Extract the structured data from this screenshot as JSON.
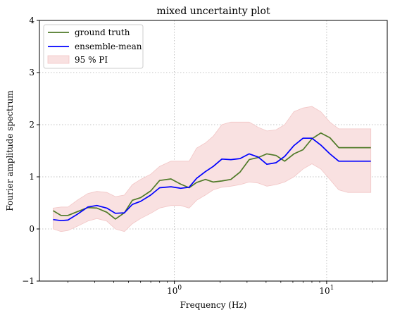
{
  "chart_data": {
    "type": "line",
    "title": "mixed uncertainty plot",
    "xlabel": "Frequency (Hz)",
    "ylabel": "Fourier amplitude spectrum",
    "xscale": "log",
    "xlim": [
      0.13,
      25
    ],
    "ylim": [
      -1,
      4
    ],
    "yticks": [
      -1,
      0,
      1,
      2,
      3,
      4
    ],
    "xticks": [
      {
        "value": 1,
        "base": "10",
        "exp": "0"
      },
      {
        "value": 10,
        "base": "10",
        "exp": "1"
      }
    ],
    "grid": true,
    "legend_position": "top-left",
    "x": [
      0.16,
      0.18,
      0.2,
      0.23,
      0.27,
      0.31,
      0.36,
      0.41,
      0.47,
      0.53,
      0.6,
      0.7,
      0.8,
      0.95,
      1.1,
      1.25,
      1.4,
      1.6,
      1.8,
      2.05,
      2.35,
      2.7,
      3.1,
      3.55,
      4.05,
      4.65,
      5.3,
      6.1,
      7.0,
      8.0,
      9.15,
      10.5,
      12.0,
      13.8,
      15.8,
      18.0,
      19.5
    ],
    "series": [
      {
        "name": "ground truth",
        "color": "#4f7a28",
        "values": [
          0.35,
          0.26,
          0.26,
          0.33,
          0.41,
          0.4,
          0.32,
          0.19,
          0.31,
          0.55,
          0.6,
          0.73,
          0.93,
          0.96,
          0.86,
          0.79,
          0.89,
          0.95,
          0.9,
          0.92,
          0.95,
          1.09,
          1.33,
          1.37,
          1.44,
          1.41,
          1.3,
          1.44,
          1.52,
          1.73,
          1.84,
          1.75,
          1.56,
          1.56,
          1.56,
          1.56,
          1.56
        ]
      },
      {
        "name": "ensemble-mean",
        "color": "#0000ff",
        "values": [
          0.18,
          0.16,
          0.17,
          0.28,
          0.42,
          0.45,
          0.4,
          0.3,
          0.31,
          0.47,
          0.53,
          0.65,
          0.79,
          0.81,
          0.78,
          0.8,
          0.97,
          1.1,
          1.2,
          1.34,
          1.33,
          1.35,
          1.44,
          1.38,
          1.24,
          1.27,
          1.39,
          1.6,
          1.74,
          1.74,
          1.61,
          1.44,
          1.3,
          1.3,
          1.3,
          1.3,
          1.3
        ]
      }
    ],
    "band": {
      "name": "95 % PI",
      "color": "#f9e1e1",
      "edge": "#f2c6c6",
      "lower": [
        0.0,
        -0.05,
        -0.03,
        0.05,
        0.15,
        0.2,
        0.15,
        0.0,
        -0.05,
        0.1,
        0.2,
        0.3,
        0.4,
        0.45,
        0.45,
        0.4,
        0.55,
        0.65,
        0.75,
        0.8,
        0.82,
        0.85,
        0.9,
        0.88,
        0.82,
        0.85,
        0.9,
        1.0,
        1.15,
        1.25,
        1.15,
        0.95,
        0.75,
        0.7,
        0.7,
        0.7,
        0.7
      ],
      "upper": [
        0.4,
        0.42,
        0.42,
        0.55,
        0.68,
        0.72,
        0.7,
        0.62,
        0.65,
        0.85,
        0.95,
        1.05,
        1.2,
        1.3,
        1.3,
        1.3,
        1.55,
        1.65,
        1.78,
        2.0,
        2.05,
        2.05,
        2.05,
        1.95,
        1.88,
        1.9,
        2.0,
        2.25,
        2.32,
        2.35,
        2.25,
        2.05,
        1.92,
        1.92,
        1.92,
        1.92,
        1.92
      ]
    }
  }
}
